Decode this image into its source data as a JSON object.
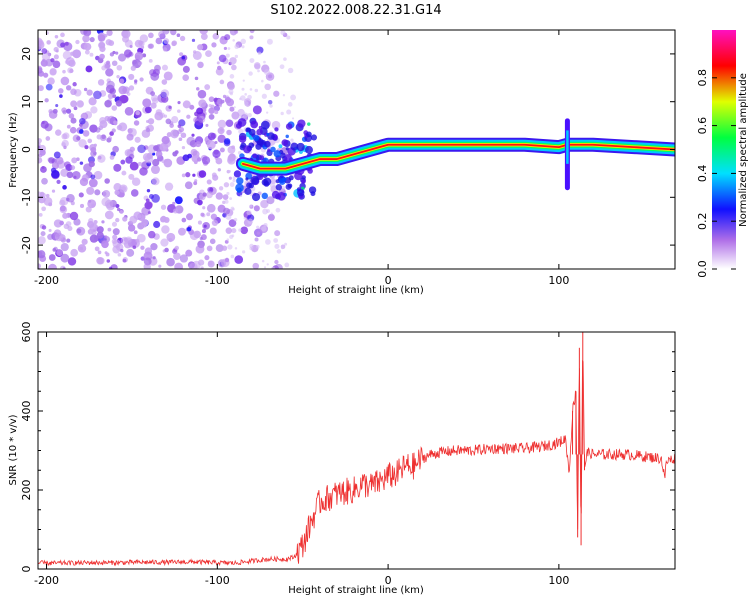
{
  "figure": {
    "title": "S102.2022.008.22.31.G14"
  },
  "chart_data": [
    {
      "type": "heatmap",
      "xlabel": "Height of straight line (km)",
      "ylabel": "Frequency (Hz)",
      "xlim": [
        -205,
        168
      ],
      "ylim": [
        -25,
        25
      ],
      "xticks": [
        -200,
        -100,
        0,
        100
      ],
      "yticks": [
        -20,
        -10,
        0,
        10,
        20
      ],
      "colorbar": {
        "label": "Normalized spectral amplitude",
        "range": [
          0,
          1
        ],
        "ticks": [
          "0.0",
          "0.2",
          "0.4",
          "0.6",
          "0.8"
        ],
        "colormap": [
          "#ffffff",
          "#b070e8",
          "#1010ff",
          "#00e0ff",
          "#00ff40",
          "#e0ff00",
          "#ff0000",
          "#ff10c0"
        ]
      },
      "ridge": {
        "description_values_x": [
          -85,
          -75,
          -60,
          -50,
          -40,
          -30,
          -20,
          -10,
          0,
          20,
          60,
          80,
          100,
          105,
          120,
          168
        ],
        "description_values_y": [
          -3,
          -4,
          -4,
          -3,
          -2,
          -2,
          -1,
          0,
          1,
          1,
          1,
          1,
          0.5,
          1,
          1,
          0
        ]
      }
    },
    {
      "type": "line",
      "xlabel": "Height of straight line (km)",
      "ylabel": "SNR (10 * v/v)",
      "xlim": [
        -205,
        168
      ],
      "ylim": [
        0,
        600
      ],
      "xticks": [
        -200,
        -100,
        0,
        100
      ],
      "yticks": [
        0,
        200,
        400,
        600
      ],
      "series": [
        {
          "color": "#ee3030",
          "x": [
            -205,
            -190,
            -175,
            -160,
            -145,
            -130,
            -115,
            -100,
            -90,
            -80,
            -70,
            -60,
            -55,
            -50,
            -45,
            -40,
            -35,
            -30,
            -25,
            -20,
            -15,
            -10,
            -5,
            0,
            5,
            10,
            15,
            20,
            25,
            30,
            40,
            50,
            60,
            70,
            80,
            90,
            95,
            100,
            104,
            106,
            108,
            110,
            111,
            112,
            113,
            114,
            115,
            116,
            118,
            120,
            125,
            130,
            140,
            150,
            160,
            162,
            163,
            164,
            168
          ],
          "y": [
            15,
            15,
            16,
            16,
            17,
            17,
            18,
            16,
            15,
            20,
            25,
            25,
            30,
            60,
            120,
            170,
            180,
            190,
            195,
            200,
            215,
            210,
            220,
            235,
            240,
            260,
            260,
            280,
            290,
            295,
            300,
            300,
            305,
            305,
            305,
            310,
            315,
            320,
            330,
            240,
            400,
            450,
            80,
            560,
            60,
            600,
            250,
            290,
            295,
            290,
            290,
            290,
            290,
            285,
            280,
            230,
            270,
            275,
            280
          ]
        }
      ]
    }
  ]
}
